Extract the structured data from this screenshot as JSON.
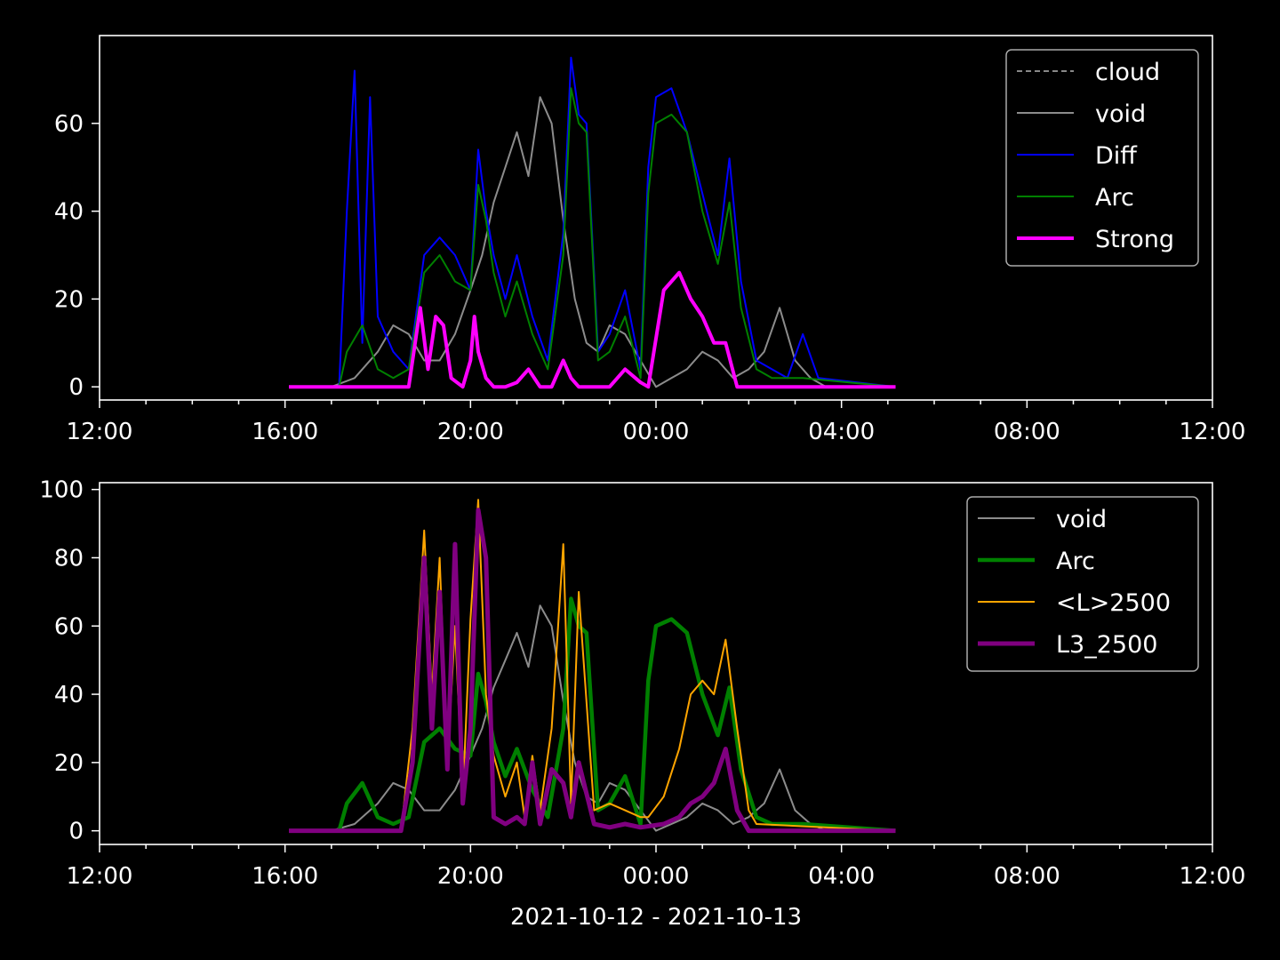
{
  "chart_data": [
    {
      "type": "line",
      "xlim": [
        "2021-10-12 12:00",
        "2021-10-13 12:00"
      ],
      "ylim": [
        -3,
        80
      ],
      "x_ticks": [
        "12:00",
        "16:00",
        "20:00",
        "00:00",
        "04:00",
        "08:00",
        "12:00"
      ],
      "y_ticks": [
        "0",
        "20",
        "40",
        "60"
      ],
      "legend_position": "top-right",
      "legend": [
        "cloud",
        "void",
        "Diff",
        "Arc",
        "Strong"
      ],
      "xlabel": "",
      "series": [
        {
          "name": "cloud",
          "color": "#888888",
          "style": "dashed",
          "x": [],
          "y": []
        },
        {
          "name": "void",
          "color": "#8c8c8c",
          "x": [
            "16:05",
            "17:00",
            "17:30",
            "18:00",
            "18:20",
            "18:40",
            "19:00",
            "19:20",
            "19:40",
            "20:00",
            "20:15",
            "20:30",
            "20:45",
            "21:00",
            "21:15",
            "21:30",
            "21:45",
            "22:00",
            "22:15",
            "22:30",
            "22:45",
            "23:00",
            "23:20",
            "23:40",
            "00:00",
            "00:20",
            "00:40",
            "01:00",
            "01:20",
            "01:40",
            "02:00",
            "02:20",
            "02:40",
            "03:00",
            "03:20",
            "03:40",
            "05:10"
          ],
          "y": [
            0,
            0,
            2,
            8,
            14,
            12,
            6,
            6,
            12,
            22,
            30,
            42,
            50,
            58,
            48,
            66,
            60,
            38,
            20,
            10,
            8,
            14,
            12,
            6,
            0,
            2,
            4,
            8,
            6,
            2,
            4,
            8,
            18,
            6,
            2,
            0,
            0
          ]
        },
        {
          "name": "Diff",
          "color": "#0000ff",
          "x": [
            "16:05",
            "17:10",
            "17:20",
            "17:30",
            "17:40",
            "17:50",
            "18:00",
            "18:20",
            "18:40",
            "19:00",
            "19:20",
            "19:40",
            "20:00",
            "20:10",
            "20:20",
            "20:30",
            "20:45",
            "21:00",
            "21:20",
            "21:40",
            "22:00",
            "22:10",
            "22:20",
            "22:30",
            "22:45",
            "23:00",
            "23:20",
            "23:40",
            "23:50",
            "00:00",
            "00:20",
            "00:40",
            "01:00",
            "01:20",
            "01:35",
            "01:50",
            "02:10",
            "02:30",
            "02:50",
            "03:10",
            "03:30",
            "05:10"
          ],
          "y": [
            0,
            0,
            40,
            72,
            10,
            66,
            16,
            8,
            4,
            30,
            34,
            30,
            22,
            54,
            40,
            30,
            20,
            30,
            16,
            6,
            35,
            75,
            62,
            60,
            8,
            12,
            22,
            4,
            50,
            66,
            68,
            58,
            44,
            30,
            52,
            24,
            6,
            4,
            2,
            12,
            2,
            0
          ]
        },
        {
          "name": "Arc",
          "color": "#008000",
          "x": [
            "16:05",
            "17:10",
            "17:20",
            "17:40",
            "18:00",
            "18:20",
            "18:40",
            "19:00",
            "19:20",
            "19:40",
            "20:00",
            "20:10",
            "20:20",
            "20:30",
            "20:45",
            "21:00",
            "21:20",
            "21:40",
            "22:00",
            "22:10",
            "22:20",
            "22:30",
            "22:45",
            "23:00",
            "23:20",
            "23:40",
            "23:50",
            "00:00",
            "00:20",
            "00:40",
            "01:00",
            "01:20",
            "01:35",
            "01:50",
            "02:10",
            "02:30",
            "02:50",
            "03:10",
            "05:10"
          ],
          "y": [
            0,
            0,
            8,
            14,
            4,
            2,
            4,
            26,
            30,
            24,
            22,
            46,
            38,
            26,
            16,
            24,
            12,
            4,
            30,
            68,
            60,
            58,
            6,
            8,
            16,
            2,
            44,
            60,
            62,
            58,
            40,
            28,
            42,
            18,
            4,
            2,
            2,
            2,
            0
          ]
        },
        {
          "name": "Strong",
          "color": "#ff00ff",
          "x": [
            "16:05",
            "18:40",
            "18:55",
            "19:05",
            "19:15",
            "19:25",
            "19:35",
            "19:50",
            "20:00",
            "20:05",
            "20:10",
            "20:20",
            "20:30",
            "20:45",
            "21:00",
            "21:15",
            "21:30",
            "21:45",
            "22:00",
            "22:10",
            "22:20",
            "22:40",
            "23:00",
            "23:20",
            "23:40",
            "23:50",
            "00:10",
            "00:30",
            "00:45",
            "01:00",
            "01:15",
            "01:30",
            "01:45",
            "02:00",
            "05:10"
          ],
          "y": [
            0,
            0,
            18,
            4,
            16,
            14,
            2,
            0,
            6,
            16,
            8,
            2,
            0,
            0,
            1,
            4,
            0,
            0,
            6,
            2,
            0,
            0,
            0,
            4,
            1,
            0,
            22,
            26,
            20,
            16,
            10,
            10,
            0,
            0,
            0
          ]
        }
      ]
    },
    {
      "type": "line",
      "xlim": [
        "2021-10-12 12:00",
        "2021-10-13 12:00"
      ],
      "ylim": [
        -4,
        102
      ],
      "x_ticks": [
        "12:00",
        "16:00",
        "20:00",
        "00:00",
        "04:00",
        "08:00",
        "12:00"
      ],
      "y_ticks": [
        "0",
        "20",
        "40",
        "60",
        "80",
        "100"
      ],
      "legend_position": "top-right",
      "legend": [
        "void",
        "Arc",
        "<L>2500",
        "L3_2500"
      ],
      "xlabel": "2021-10-12 - 2021-10-13",
      "series": [
        {
          "name": "void",
          "color": "#8c8c8c",
          "x": [
            "16:05",
            "17:00",
            "17:30",
            "18:00",
            "18:20",
            "18:40",
            "19:00",
            "19:20",
            "19:40",
            "20:00",
            "20:15",
            "20:30",
            "20:45",
            "21:00",
            "21:15",
            "21:30",
            "21:45",
            "22:00",
            "22:15",
            "22:30",
            "22:45",
            "23:00",
            "23:20",
            "23:40",
            "00:00",
            "00:20",
            "00:40",
            "01:00",
            "01:20",
            "01:40",
            "02:00",
            "02:20",
            "02:40",
            "03:00",
            "03:20",
            "03:40",
            "05:10"
          ],
          "y": [
            0,
            0,
            2,
            8,
            14,
            12,
            6,
            6,
            12,
            22,
            30,
            42,
            50,
            58,
            48,
            66,
            60,
            38,
            20,
            10,
            8,
            14,
            12,
            6,
            0,
            2,
            4,
            8,
            6,
            2,
            4,
            8,
            18,
            6,
            2,
            0,
            0
          ]
        },
        {
          "name": "Arc",
          "color": "#008000",
          "x": [
            "16:05",
            "17:10",
            "17:20",
            "17:40",
            "18:00",
            "18:20",
            "18:40",
            "19:00",
            "19:20",
            "19:40",
            "20:00",
            "20:10",
            "20:20",
            "20:30",
            "20:45",
            "21:00",
            "21:20",
            "21:40",
            "22:00",
            "22:10",
            "22:20",
            "22:30",
            "22:45",
            "23:00",
            "23:20",
            "23:40",
            "23:50",
            "00:00",
            "00:20",
            "00:40",
            "01:00",
            "01:20",
            "01:35",
            "01:50",
            "02:10",
            "02:30",
            "02:50",
            "03:10",
            "05:10"
          ],
          "y": [
            0,
            0,
            8,
            14,
            4,
            2,
            4,
            26,
            30,
            24,
            22,
            46,
            38,
            26,
            16,
            24,
            12,
            4,
            30,
            68,
            60,
            58,
            6,
            8,
            16,
            2,
            44,
            60,
            62,
            58,
            40,
            28,
            42,
            18,
            4,
            2,
            2,
            2,
            0
          ]
        },
        {
          "name": "<L>2500",
          "color": "#ffa500",
          "x": [
            "16:05",
            "18:30",
            "18:45",
            "19:00",
            "19:10",
            "19:20",
            "19:30",
            "19:40",
            "19:50",
            "20:00",
            "20:10",
            "20:20",
            "20:30",
            "20:45",
            "21:00",
            "21:10",
            "21:20",
            "21:30",
            "21:45",
            "22:00",
            "22:10",
            "22:20",
            "22:40",
            "23:00",
            "23:20",
            "23:40",
            "23:50",
            "00:10",
            "00:30",
            "00:45",
            "01:00",
            "01:15",
            "01:30",
            "01:45",
            "02:00",
            "02:10",
            "05:10"
          ],
          "y": [
            0,
            0,
            30,
            88,
            40,
            80,
            20,
            60,
            10,
            62,
            97,
            40,
            22,
            10,
            20,
            4,
            22,
            6,
            30,
            84,
            8,
            70,
            6,
            8,
            6,
            4,
            4,
            10,
            24,
            40,
            44,
            40,
            56,
            30,
            6,
            2,
            0
          ]
        },
        {
          "name": "L3_2500",
          "color": "#800080",
          "x": [
            "16:05",
            "18:30",
            "18:45",
            "19:00",
            "19:10",
            "19:20",
            "19:30",
            "19:40",
            "19:50",
            "20:00",
            "20:10",
            "20:20",
            "20:30",
            "20:45",
            "21:00",
            "21:10",
            "21:20",
            "21:30",
            "21:45",
            "22:00",
            "22:10",
            "22:20",
            "22:40",
            "23:00",
            "23:20",
            "23:40",
            "00:10",
            "00:30",
            "00:45",
            "01:00",
            "01:15",
            "01:30",
            "01:45",
            "02:00",
            "05:10"
          ],
          "y": [
            0,
            0,
            20,
            80,
            30,
            70,
            18,
            84,
            8,
            30,
            94,
            80,
            4,
            2,
            4,
            2,
            20,
            2,
            18,
            14,
            4,
            20,
            2,
            1,
            2,
            1,
            2,
            4,
            8,
            10,
            14,
            24,
            6,
            0,
            0
          ]
        }
      ]
    }
  ]
}
